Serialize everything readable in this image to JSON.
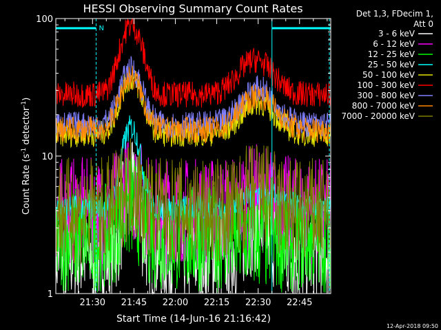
{
  "chart_data": {
    "type": "line",
    "title": "HESSI Observing Summary Count Rates",
    "xlabel": "Start Time (14-Jun-16 21:16:42)",
    "ylabel": "Count Rate (s",
    "ylabel_sup": "-1",
    "ylabel_tail": " detector",
    "ylabel_sup2": "-1",
    "ylabel_close": ")",
    "y_scale": "log",
    "ylim": [
      1,
      100
    ],
    "y_tick_labels": [
      "1",
      "10",
      "100"
    ],
    "x_tick_labels": [
      "21:30",
      "21:45",
      "22:00",
      "22:15",
      "22:30",
      "22:45"
    ],
    "x_tick_minutes": [
      30,
      45,
      60,
      75,
      90,
      105
    ],
    "xlim_minutes": [
      16.7,
      116.3
    ],
    "legend_header": [
      "Det 1,3, FDecim 1,",
      "Att 0"
    ],
    "legend_position": "right",
    "annotations": {
      "night_marker": "N",
      "datestamp": "12-Apr-2018 09:50"
    },
    "colors": {
      "background": "#000000",
      "axes": "#ffffff",
      "night_bar": "#00ffff"
    },
    "series": [
      {
        "name": "3 - 6 keV",
        "color": "#ffffff",
        "baseline": 2.0,
        "peaks": [
          [
            44,
            3.2,
            4
          ],
          [
            90,
            1.5,
            6
          ]
        ]
      },
      {
        "name": "6 - 12 keV",
        "color": "#ff00ff",
        "baseline": 4.0,
        "peaks": [
          [
            44,
            2.0,
            5
          ],
          [
            90,
            1.1,
            8
          ]
        ]
      },
      {
        "name": "12 - 25 keV",
        "color": "#00ff00",
        "baseline": 2.5,
        "peaks": [
          [
            44,
            1.8,
            5
          ]
        ]
      },
      {
        "name": "25 - 50 keV",
        "color": "#00ffff",
        "baseline": 4.2,
        "peaks": [
          [
            44,
            12,
            4
          ],
          [
            92,
            1.3,
            8
          ]
        ]
      },
      {
        "name": "50 - 100 keV",
        "color": "#e6e600",
        "baseline": 14.5,
        "peaks": [
          [
            44,
            22,
            5
          ],
          [
            90,
            10,
            8
          ]
        ]
      },
      {
        "name": "100 - 300 keV",
        "color": "#ff0000",
        "baseline": 28,
        "peaks": [
          [
            44,
            62,
            5
          ],
          [
            89,
            22,
            8
          ]
        ]
      },
      {
        "name": "300 - 800 keV",
        "color": "#8080ff",
        "baseline": 17,
        "peaks": [
          [
            44,
            26,
            5
          ],
          [
            90,
            14,
            8
          ]
        ]
      },
      {
        "name": "800 - 7000 keV",
        "color": "#ff8800",
        "baseline": 15.5,
        "peaks": [
          [
            44,
            22,
            5
          ],
          [
            90,
            12,
            8
          ]
        ]
      },
      {
        "name": "7000 - 20000 keV",
        "color": "#808000",
        "baseline": 4.0,
        "peaks": [
          [
            44,
            2.0,
            5
          ],
          [
            90,
            1.5,
            6
          ]
        ]
      }
    ],
    "night_intervals_minutes": [
      [
        16.7,
        31.3
      ],
      [
        95.0,
        116.3
      ]
    ]
  }
}
